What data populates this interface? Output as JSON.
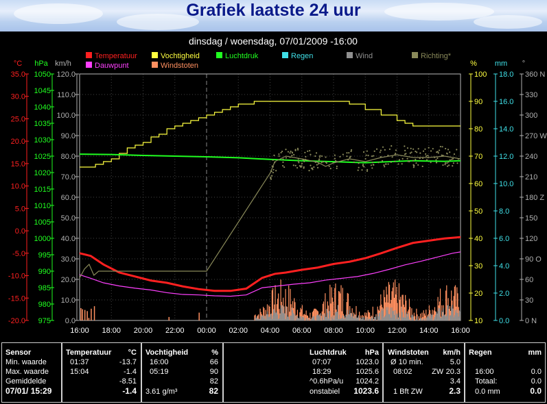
{
  "header": {
    "title": "Grafiek laatste 24 uur"
  },
  "chart_data": {
    "type": "line",
    "title": "dinsdag / woensdag, 07/01/2009  -16:00",
    "legend": [
      {
        "label": "Temperatuur",
        "color": "#ff2020"
      },
      {
        "label": "Vochtigheid",
        "color": "#ffff40"
      },
      {
        "label": "Luchtdruk",
        "color": "#20ff20"
      },
      {
        "label": "Regen",
        "color": "#40e0e8"
      },
      {
        "label": "Wind",
        "color": "#909090"
      },
      {
        "label": "Richting*",
        "color": "#8a8a5a"
      },
      {
        "label": "Dauwpunt",
        "color": "#ff40ff"
      },
      {
        "label": "Windstoten",
        "color": "#ff9060"
      }
    ],
    "axes": [
      {
        "unit": "°C",
        "color": "#ff2020",
        "ticks": [
          "35.0",
          "30.0",
          "25.0",
          "20.0",
          "15.0",
          "10.0",
          "5.0",
          "0.0",
          "-5.0",
          "-10.0",
          "-15.0",
          "-20.0"
        ],
        "range": [
          -20,
          35
        ]
      },
      {
        "unit": "hPa",
        "color": "#20ff20",
        "ticks": [
          "1050",
          "1045",
          "1040",
          "1035",
          "1030",
          "1025",
          "1020",
          "1015",
          "1010",
          "1005",
          "1000",
          "995",
          "990",
          "985",
          "980",
          "975"
        ],
        "range": [
          975,
          1050
        ]
      },
      {
        "unit": "km/h",
        "color": "#b0b0b0",
        "ticks": [
          "120.0",
          "110.0",
          "100.0",
          "90.0",
          "80.0",
          "70.0",
          "60.0",
          "50.0",
          "40.0",
          "30.0",
          "20.0",
          "10.0",
          "0.0"
        ],
        "range": [
          0,
          120
        ]
      },
      {
        "unit": "%",
        "color": "#ffff40",
        "ticks": [
          "100",
          "90",
          "80",
          "70",
          "60",
          "50",
          "40",
          "30",
          "20",
          "10"
        ],
        "range": [
          10,
          100
        ]
      },
      {
        "unit": "mm",
        "color": "#40e0e8",
        "ticks": [
          "18.0",
          "16.0",
          "14.0",
          "12.0",
          "10.0",
          "8.0",
          "6.0",
          "4.0",
          "2.0",
          "0.0"
        ],
        "range": [
          0,
          18
        ]
      },
      {
        "unit": "°",
        "color": "#b0b0b0",
        "ticks": [
          "360 N",
          "330",
          "300",
          "270 W",
          "240",
          "210",
          "180 Z",
          "150",
          "120",
          "90 O",
          "60",
          "30",
          "0 N"
        ],
        "range": [
          0,
          360
        ]
      }
    ],
    "x_ticks": [
      "16:00",
      "18:00",
      "20:00",
      "22:00",
      "00:00",
      "02:00",
      "04:00",
      "06:00",
      "08:00",
      "10:00",
      "12:00",
      "14:00",
      "16:00"
    ],
    "x_range_hours": [
      0,
      24
    ],
    "grid": true,
    "series": [
      {
        "name": "Temperatuur",
        "axis": "°C",
        "color": "#ff2020",
        "x": [
          0,
          0.7,
          1.5,
          2.5,
          3.5,
          4.5,
          5.5,
          6.5,
          7.5,
          8.5,
          9.5,
          10.5,
          11.5,
          12.3,
          13,
          14,
          15,
          16,
          17,
          18,
          19,
          20,
          21,
          22,
          23,
          24
        ],
        "values": [
          -5.0,
          -5.6,
          -7.5,
          -9.3,
          -10.2,
          -11.1,
          -11.6,
          -12.4,
          -13.0,
          -13.4,
          -13.4,
          -12.9,
          -10.5,
          -9.6,
          -9.3,
          -8.7,
          -8.2,
          -7.4,
          -6.9,
          -6.1,
          -5.0,
          -3.8,
          -2.7,
          -2.2,
          -1.7,
          -1.4
        ]
      },
      {
        "name": "Dauwpunt",
        "axis": "°C",
        "color": "#ff40ff",
        "x": [
          0,
          0.7,
          1.5,
          2.5,
          3.5,
          4.5,
          5.5,
          6.5,
          7.5,
          8.5,
          9.5,
          10.5,
          11.5,
          12.5,
          13.5,
          14.5,
          15.5,
          16.5,
          17.5,
          18.5,
          19.5,
          20.5,
          21.5,
          22.5,
          23.5,
          24
        ],
        "values": [
          -9.8,
          -10.6,
          -11.6,
          -12.3,
          -12.8,
          -13.2,
          -13.8,
          -14.2,
          -14.3,
          -14.5,
          -14.6,
          -14.3,
          -12.7,
          -12.3,
          -11.9,
          -11.6,
          -11.0,
          -10.6,
          -10.2,
          -9.5,
          -8.6,
          -7.6,
          -6.8,
          -5.9,
          -5.0,
          -4.7
        ]
      },
      {
        "name": "Vochtigheid",
        "axis": "%",
        "color": "#ffff40",
        "x": [
          0,
          1,
          1.5,
          2,
          2.5,
          3,
          3.5,
          4,
          4.5,
          5,
          5.5,
          6,
          6.5,
          7,
          7.5,
          8,
          8.5,
          9,
          9.5,
          10,
          11,
          12,
          13,
          14,
          16,
          17,
          18,
          19,
          20,
          20.5,
          21,
          22,
          24
        ],
        "values": [
          66,
          67,
          68,
          69,
          71,
          73,
          74,
          75,
          77,
          78,
          80,
          81,
          82,
          83,
          84,
          85,
          86,
          87,
          88,
          89,
          90,
          90,
          90,
          90,
          90,
          89,
          87,
          85,
          83,
          82,
          81,
          81,
          81
        ]
      },
      {
        "name": "Luchtdruk",
        "axis": "hPa",
        "color": "#20ff20",
        "x": [
          0,
          2,
          4,
          6,
          8,
          10,
          12,
          14,
          16,
          18,
          20,
          21,
          22,
          23,
          24
        ],
        "values": [
          1025.6,
          1025.5,
          1025.2,
          1025.0,
          1024.8,
          1024.5,
          1024.0,
          1023.6,
          1023.3,
          1023.0,
          1023.4,
          1023.6,
          1023.5,
          1023.4,
          1023.6
        ]
      },
      {
        "name": "Richting*",
        "axis": "°",
        "color": "#8a8a5a",
        "x": [
          0,
          0.3,
          0.6,
          0.9,
          1.2,
          8,
          12,
          12.3,
          13,
          14,
          15,
          15.5,
          16,
          17,
          18,
          19,
          20,
          21,
          22,
          23,
          24
        ],
        "values": [
          62,
          75,
          82,
          66,
          72,
          72,
          215,
          232,
          240,
          236,
          231,
          225,
          230,
          236,
          232,
          238,
          242,
          238,
          238,
          240,
          236
        ]
      }
    ],
    "bars": [
      {
        "name": "Windstoten",
        "axis": "km/h",
        "color": "#ff9060",
        "from_hours": 11.0,
        "to_hours": 24,
        "max": 20.3
      },
      {
        "name": "Wind",
        "axis": "km/h",
        "color": "#909090",
        "from_hours": 11.0,
        "to_hours": 24,
        "max": 8
      }
    ]
  },
  "table": {
    "sensor": {
      "header": "Sensor",
      "rows": [
        "Min. waarde",
        "Max. waarde",
        "Gemiddelde"
      ],
      "current": "07/01/ 15:29"
    },
    "temperatuur": {
      "header": "Temperatuur",
      "unit": "°C",
      "min_time": "01:37",
      "min": "-13.7",
      "max_time": "15:04",
      "max": "-1.4",
      "avg": "-8.51",
      "current": "-1.4"
    },
    "vochtigheid": {
      "header": "Vochtigheid",
      "unit": "%",
      "min_time": "16:00",
      "min": "66",
      "max_time": "05:19",
      "max": "90",
      "avg": "82",
      "current_extra": "3.61 g/m³",
      "current": "82"
    },
    "luchtdruk": {
      "header": "Luchtdruk",
      "unit": "hPa",
      "min_time": "07:07",
      "min": "1023.0",
      "max_time": "18:29",
      "max": "1025.6",
      "avg_label": "^0.6hPa/u",
      "avg": "1024.2",
      "current_label": "onstabiel",
      "current": "1023.6"
    },
    "windstoten": {
      "header": "Windstoten",
      "unit": "km/h",
      "min_label": "Ø 10 min.",
      "min": "5.0",
      "max_time": "08:02",
      "max_dir": "ZW",
      "max": "20.3",
      "avg": "3.4",
      "current_label": "1 Bft ZW",
      "current": "2.3"
    },
    "regen": {
      "header": "Regen",
      "unit": "mm",
      "min_time": "16:00",
      "min": "0.0",
      "avg_label": "Totaal:",
      "avg": "0.0",
      "current_label": "0.0 mm",
      "current": "0.0"
    }
  }
}
